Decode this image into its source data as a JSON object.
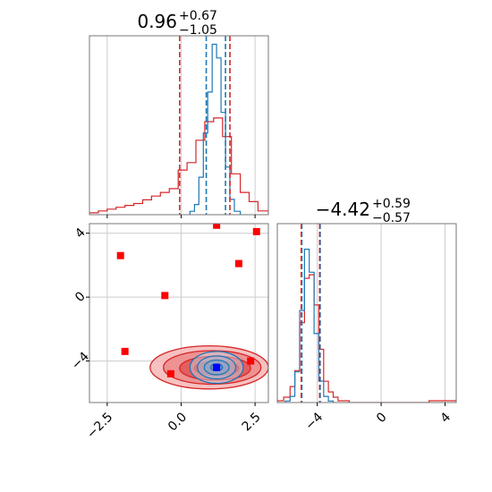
{
  "chart_data": {
    "type": "corner",
    "colors": {
      "red": "#d62728",
      "blue": "#1f77b4",
      "grid": "#cccccc",
      "spine": "#777777"
    },
    "parameters": [
      {
        "title": "0.96",
        "upper": "+0.67",
        "lower": "−1.05",
        "xlim": [
          -3.1,
          2.95
        ],
        "xticks": [
          -2.5,
          0.0,
          2.5
        ],
        "xtick_labels": [
          "−2.5",
          "0.0",
          "2.5"
        ],
        "quantile_lines": {
          "red": [
            -0.05,
            1.65
          ],
          "blue": [
            0.85,
            1.5
          ]
        }
      },
      {
        "title": "−4.42",
        "upper": "+0.59",
        "lower": "−0.57",
        "xlim": [
          -6.5,
          4.7
        ],
        "xticks": [
          -4,
          0,
          4
        ],
        "xtick_labels": [
          "−4",
          "0",
          "4"
        ],
        "quantile_lines": {
          "red": [
            -5.0,
            -3.85
          ],
          "blue": [
            -5.0,
            -3.85
          ]
        }
      }
    ],
    "joint": {
      "xlim": [
        -3.1,
        2.95
      ],
      "ylim": [
        -6.6,
        4.6
      ],
      "yticks": [
        -4,
        0,
        4
      ],
      "ytick_labels": [
        "−4",
        "0",
        "4"
      ],
      "red_points": [
        [
          1.2,
          4.5
        ],
        [
          2.55,
          4.1
        ],
        [
          -2.05,
          2.6
        ],
        [
          1.95,
          2.1
        ],
        [
          -0.55,
          0.1
        ],
        [
          -1.9,
          -3.4
        ],
        [
          -0.35,
          -4.8
        ],
        [
          2.35,
          -4.0
        ]
      ],
      "blue_point": [
        1.2,
        -4.4
      ],
      "red_contours": [
        {
          "cx": 0.95,
          "cy": -4.4,
          "rx": 2.0,
          "ry": 1.35
        },
        {
          "cx": 1.05,
          "cy": -4.4,
          "rx": 1.65,
          "ry": 1.05
        },
        {
          "cx": 1.15,
          "cy": -4.45,
          "rx": 1.2,
          "ry": 0.75
        },
        {
          "cx": 1.2,
          "cy": -4.45,
          "rx": 0.75,
          "ry": 0.45
        }
      ],
      "blue_contours": [
        {
          "cx": 1.2,
          "cy": -4.4,
          "rx": 0.9,
          "ry": 1.0
        },
        {
          "cx": 1.2,
          "cy": -4.4,
          "rx": 0.65,
          "ry": 0.72
        },
        {
          "cx": 1.2,
          "cy": -4.4,
          "rx": 0.42,
          "ry": 0.46
        },
        {
          "cx": 1.2,
          "cy": -4.4,
          "rx": 0.2,
          "ry": 0.22
        }
      ]
    },
    "histograms": {
      "param1_red": {
        "edges": [
          -3.1,
          -2.8,
          -2.5,
          -2.2,
          -1.9,
          -1.6,
          -1.3,
          -1.0,
          -0.7,
          -0.4,
          -0.1,
          0.2,
          0.5,
          0.8,
          1.1,
          1.4,
          1.7,
          2.0,
          2.3,
          2.6,
          2.95
        ],
        "counts": [
          1,
          2,
          3,
          4,
          5,
          6,
          8,
          10,
          12,
          14,
          24,
          28,
          40,
          50,
          52,
          42,
          22,
          12,
          7,
          2
        ]
      },
      "param1_blue": {
        "edges": [
          0.3,
          0.45,
          0.6,
          0.75,
          0.9,
          1.05,
          1.2,
          1.35,
          1.5,
          1.65,
          1.8,
          2.0
        ],
        "counts": [
          2,
          6,
          22,
          48,
          72,
          100,
          92,
          60,
          28,
          9,
          2
        ]
      },
      "param2_red": {
        "edges": [
          -6.5,
          -6.1,
          -5.7,
          -5.4,
          -5.1,
          -4.8,
          -4.5,
          -4.2,
          -3.9,
          -3.6,
          -3.3,
          -3.0,
          -2.7,
          -2.4,
          -2.0,
          -1.0,
          0.0,
          1.0,
          2.0,
          3.0,
          4.7
        ],
        "counts": [
          1,
          3,
          9,
          18,
          45,
          70,
          72,
          55,
          30,
          12,
          6,
          3,
          1,
          1,
          0,
          0,
          0,
          0,
          0,
          1
        ]
      },
      "param2_blue": {
        "edges": [
          -6.0,
          -5.7,
          -5.4,
          -5.1,
          -4.8,
          -4.5,
          -4.2,
          -3.9,
          -3.6,
          -3.3,
          -3.0
        ],
        "counts": [
          1,
          4,
          20,
          60,
          100,
          85,
          45,
          14,
          4,
          1
        ]
      }
    }
  }
}
